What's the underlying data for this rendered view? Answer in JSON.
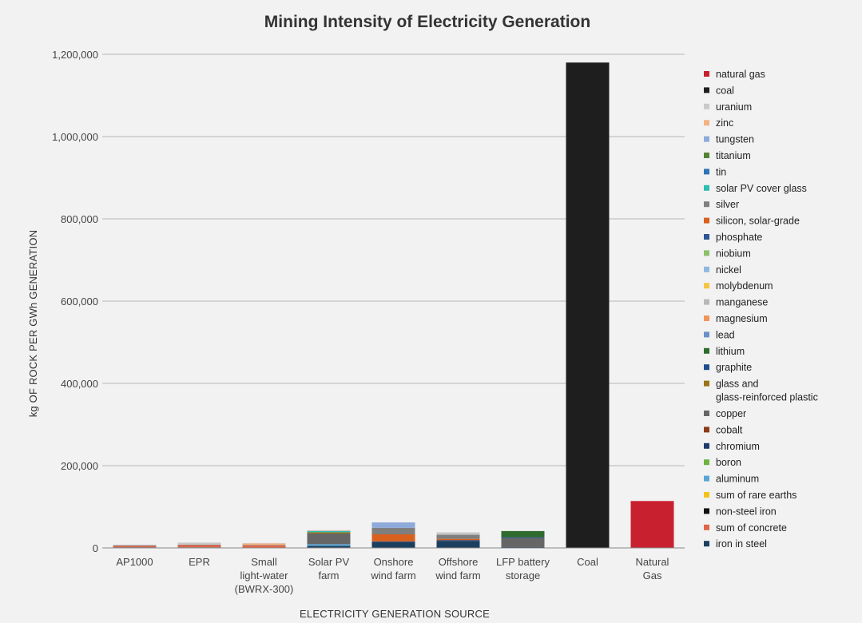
{
  "chart_data": {
    "type": "bar",
    "stacked": true,
    "title": "Mining Intensity of Electricity Generation",
    "xlabel": "ELECTRICITY GENERATION SOURCE",
    "ylabel": "kg OF ROCK PER GWh GENERATION",
    "ylim": [
      0,
      1200000
    ],
    "yticks": [
      0,
      200000,
      400000,
      600000,
      800000,
      1000000,
      1200000
    ],
    "ytick_labels": [
      "0",
      "200,000",
      "400,000",
      "600,000",
      "800,000",
      "1,000,000",
      "1,200,000"
    ],
    "grid": true,
    "legend_position": "right",
    "categories": [
      [
        "AP1000"
      ],
      [
        "EPR"
      ],
      [
        "Small",
        "light-water",
        "(BWRX-300)"
      ],
      [
        "Solar PV",
        "farm"
      ],
      [
        "Onshore",
        "wind farm"
      ],
      [
        "Offshore",
        "wind farm"
      ],
      [
        "LFP battery",
        "storage"
      ],
      [
        "Coal"
      ],
      [
        "Natural",
        "Gas"
      ]
    ],
    "series": [
      {
        "name": "iron in steel",
        "color": "#1b3f5e",
        "values": [
          1500,
          1500,
          1000,
          5000,
          15000,
          16000,
          2000,
          0,
          0
        ]
      },
      {
        "name": "sum of concrete",
        "color": "#e0664a",
        "values": [
          3500,
          5500,
          5000,
          0,
          0,
          0,
          0,
          0,
          0
        ]
      },
      {
        "name": "non-steel iron",
        "color": "#111111",
        "values": [
          0,
          0,
          0,
          0,
          0,
          0,
          0,
          0,
          0
        ]
      },
      {
        "name": "sum of rare earths",
        "color": "#f2c21b",
        "values": [
          0,
          0,
          0,
          0,
          0,
          0,
          0,
          0,
          0
        ]
      },
      {
        "name": "aluminum",
        "color": "#5aa5d6",
        "values": [
          0,
          0,
          0,
          4000,
          0,
          0,
          0,
          0,
          0
        ]
      },
      {
        "name": "boron",
        "color": "#6db33f",
        "values": [
          0,
          0,
          0,
          0,
          0,
          0,
          0,
          0,
          0
        ]
      },
      {
        "name": "chromium",
        "color": "#213a6b",
        "values": [
          0,
          0,
          0,
          0,
          1000,
          3000,
          0,
          0,
          0
        ]
      },
      {
        "name": "cobalt",
        "color": "#8b3a1a",
        "values": [
          0,
          0,
          0,
          0,
          0,
          0,
          0,
          0,
          0
        ]
      },
      {
        "name": "copper",
        "color": "#666666",
        "values": [
          1000,
          1000,
          1000,
          26000,
          0,
          0,
          22000,
          0,
          0
        ]
      },
      {
        "name": "glass and\nglass-reinforced plastic",
        "color": "#9a7418",
        "values": [
          0,
          0,
          0,
          3000,
          0,
          0,
          0,
          0,
          0
        ]
      },
      {
        "name": "graphite",
        "color": "#1f4e8c",
        "values": [
          0,
          0,
          0,
          0,
          0,
          0,
          2000,
          0,
          0
        ]
      },
      {
        "name": "lithium",
        "color": "#2e6b2e",
        "values": [
          0,
          0,
          0,
          0,
          0,
          0,
          15000,
          0,
          0
        ]
      },
      {
        "name": "lead",
        "color": "#6b8fc9",
        "values": [
          0,
          0,
          0,
          0,
          0,
          0,
          0,
          0,
          0
        ]
      },
      {
        "name": "magnesium",
        "color": "#f0955a",
        "values": [
          0,
          0,
          0,
          0,
          0,
          0,
          0,
          0,
          0
        ]
      },
      {
        "name": "manganese",
        "color": "#b8b8b8",
        "values": [
          0,
          0,
          0,
          0,
          0,
          0,
          0,
          0,
          0
        ]
      },
      {
        "name": "molybdenum",
        "color": "#f5c542",
        "values": [
          0,
          0,
          0,
          0,
          0,
          0,
          0,
          0,
          0
        ]
      },
      {
        "name": "nickel",
        "color": "#8fb8e0",
        "values": [
          0,
          0,
          0,
          0,
          0,
          0,
          0,
          0,
          0
        ]
      },
      {
        "name": "niobium",
        "color": "#8cc06a",
        "values": [
          0,
          0,
          0,
          0,
          0,
          0,
          0,
          0,
          0
        ]
      },
      {
        "name": "phosphate",
        "color": "#2f5597",
        "values": [
          0,
          0,
          0,
          0,
          0,
          0,
          0,
          0,
          0
        ]
      },
      {
        "name": "silicon, solar-grade",
        "color": "#d9601f",
        "values": [
          0,
          0,
          0,
          0,
          17000,
          3000,
          0,
          0,
          0
        ]
      },
      {
        "name": "silver",
        "color": "#7f7f7f",
        "values": [
          0,
          0,
          0,
          0,
          16000,
          10000,
          0,
          0,
          0
        ]
      },
      {
        "name": "solar PV cover glass",
        "color": "#2abfb0",
        "values": [
          0,
          0,
          0,
          3000,
          0,
          0,
          0,
          0,
          0
        ]
      },
      {
        "name": "tin",
        "color": "#2e75b6",
        "values": [
          0,
          0,
          0,
          0,
          0,
          0,
          0,
          0,
          0
        ]
      },
      {
        "name": "titanium",
        "color": "#548235",
        "values": [
          0,
          0,
          0,
          0,
          0,
          0,
          0,
          0,
          0
        ]
      },
      {
        "name": "tungsten",
        "color": "#8eaadb",
        "values": [
          0,
          0,
          0,
          1000,
          13000,
          0,
          0,
          0,
          0
        ]
      },
      {
        "name": "zinc",
        "color": "#f4b183",
        "values": [
          0,
          0,
          4000,
          1000,
          0,
          0,
          0,
          0,
          0
        ]
      },
      {
        "name": "uranium",
        "color": "#c9c9c9",
        "values": [
          2000,
          5000,
          1000,
          0,
          0,
          6000,
          0,
          0,
          0
        ]
      },
      {
        "name": "coal",
        "color": "#1e1e1e",
        "values": [
          0,
          0,
          0,
          0,
          0,
          0,
          0,
          1180000,
          0
        ]
      },
      {
        "name": "natural gas",
        "color": "#c8202f",
        "values": [
          0,
          0,
          0,
          0,
          0,
          0,
          0,
          0,
          114000
        ]
      }
    ]
  }
}
